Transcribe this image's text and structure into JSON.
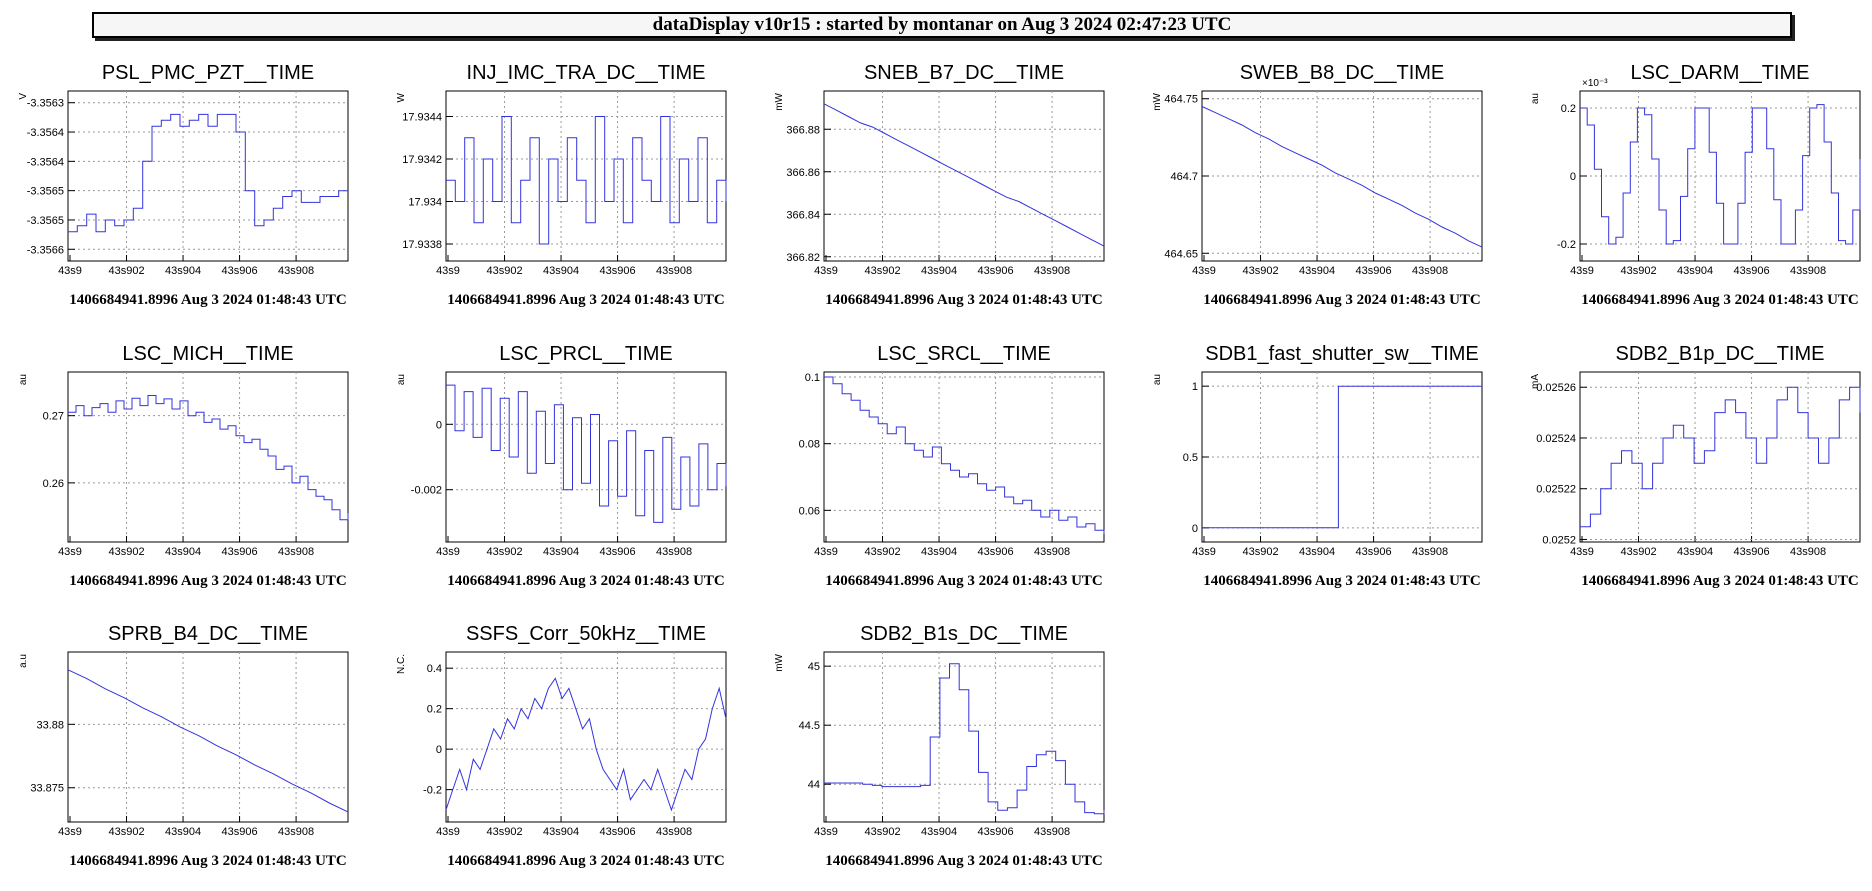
{
  "app_title": "dataDisplay v10r15 : started by montanar on Aug  3 2024 02:47:23 UTC",
  "colors": {
    "trace": "#3333dd",
    "grid": "#999999",
    "axis": "#000000",
    "background": "#ffffff"
  },
  "chart_data": [
    {
      "type": "line",
      "title": "PSL_PMC_PZT__TIME",
      "ylabel": "V",
      "footer": "1406684941.8996 Aug 3 2024 01:48:43 UTC",
      "x_ticks": [
        "43s9",
        "43s902",
        "43s904",
        "43s906",
        "43s908"
      ],
      "y_ticks": [
        "-3.3563",
        "-3.3564",
        "-3.3564",
        "-3.3565",
        "-3.3565",
        "-3.3566"
      ],
      "y_tick_values": [
        -3.3563,
        -3.35635,
        -3.3564,
        -3.35645,
        -3.3565,
        -3.35655
      ],
      "ylim": [
        -3.35657,
        -3.35628
      ],
      "grid": true,
      "step": true,
      "series": [
        {
          "values": [
            -3.35652,
            -3.35651,
            -3.35649,
            -3.35652,
            -3.3565,
            -3.35651,
            -3.3565,
            -3.35648,
            -3.3564,
            -3.35634,
            -3.35633,
            -3.35632,
            -3.35634,
            -3.35633,
            -3.35632,
            -3.35634,
            -3.35632,
            -3.35632,
            -3.35635,
            -3.35645,
            -3.35651,
            -3.3565,
            -3.35648,
            -3.35646,
            -3.35645,
            -3.35647,
            -3.35647,
            -3.35646,
            -3.35646,
            -3.35645,
            -3.35645
          ]
        }
      ]
    },
    {
      "type": "line",
      "title": "INJ_IMC_TRA_DC__TIME",
      "ylabel": "W",
      "footer": "1406684941.8996 Aug 3 2024 01:48:43 UTC",
      "x_ticks": [
        "43s9",
        "43s902",
        "43s904",
        "43s906",
        "43s908"
      ],
      "y_ticks": [
        "17.9344",
        "17.9342",
        "17.934",
        "17.9338"
      ],
      "y_tick_values": [
        17.9344,
        17.9342,
        17.934,
        17.9338
      ],
      "ylim": [
        17.93372,
        17.93452
      ],
      "grid": true,
      "step": true,
      "series": [
        {
          "values": [
            17.9341,
            17.934,
            17.9343,
            17.9339,
            17.9342,
            17.934,
            17.9344,
            17.9339,
            17.9341,
            17.9343,
            17.9338,
            17.9342,
            17.934,
            17.9343,
            17.9341,
            17.9339,
            17.9344,
            17.934,
            17.9342,
            17.9339,
            17.9343,
            17.9341,
            17.934,
            17.9344,
            17.9339,
            17.9342,
            17.934,
            17.9343,
            17.9339,
            17.9341,
            17.934
          ]
        }
      ]
    },
    {
      "type": "line",
      "title": "SNEB_B7_DC__TIME",
      "ylabel": "mW",
      "footer": "1406684941.8996 Aug 3 2024 01:48:43 UTC",
      "x_ticks": [
        "43s9",
        "43s902",
        "43s904",
        "43s906",
        "43s908"
      ],
      "y_ticks": [
        "366.88",
        "366.86",
        "366.84",
        "366.82"
      ],
      "y_tick_values": [
        366.88,
        366.86,
        366.84,
        366.82
      ],
      "ylim": [
        366.818,
        366.898
      ],
      "grid": true,
      "step": false,
      "series": [
        {
          "values": [
            366.892,
            366.889,
            366.886,
            366.883,
            366.881,
            366.878,
            366.875,
            366.872,
            366.869,
            366.866,
            366.863,
            366.86,
            366.857,
            366.854,
            366.851,
            366.848,
            366.846,
            366.843,
            366.84,
            366.837,
            366.834,
            366.831,
            366.828,
            366.825
          ]
        }
      ]
    },
    {
      "type": "line",
      "title": "SWEB_B8_DC__TIME",
      "ylabel": "mW",
      "footer": "1406684941.8996 Aug 3 2024 01:48:43 UTC",
      "x_ticks": [
        "43s9",
        "43s902",
        "43s904",
        "43s906",
        "43s908"
      ],
      "y_ticks": [
        "464.75",
        "464.7",
        "464.65"
      ],
      "y_tick_values": [
        464.75,
        464.7,
        464.65
      ],
      "ylim": [
        464.645,
        464.755
      ],
      "grid": true,
      "step": false,
      "series": [
        {
          "values": [
            464.745,
            464.741,
            464.737,
            464.733,
            464.728,
            464.724,
            464.719,
            464.715,
            464.711,
            464.707,
            464.702,
            464.698,
            464.694,
            464.689,
            464.685,
            464.681,
            464.676,
            464.672,
            464.667,
            464.663,
            464.658,
            464.654
          ]
        }
      ]
    },
    {
      "type": "line",
      "title": "LSC_DARM__TIME",
      "ylabel": "au",
      "y_exponent": "×10⁻³",
      "footer": "1406684941.8996 Aug 3 2024 01:48:43 UTC",
      "x_ticks": [
        "43s9",
        "43s902",
        "43s904",
        "43s906",
        "43s908"
      ],
      "y_ticks": [
        "0.2",
        "0",
        "-0.2"
      ],
      "y_tick_values": [
        0.2,
        0,
        -0.2
      ],
      "ylim": [
        -0.25,
        0.25
      ],
      "grid": true,
      "step": true,
      "series": [
        {
          "values": [
            0.2,
            0.15,
            0.02,
            -0.12,
            -0.2,
            -0.18,
            -0.05,
            0.1,
            0.2,
            0.18,
            0.05,
            -0.1,
            -0.2,
            -0.19,
            -0.06,
            0.08,
            0.2,
            0.2,
            0.07,
            -0.08,
            -0.2,
            -0.2,
            -0.08,
            0.07,
            0.2,
            0.2,
            0.08,
            -0.07,
            -0.2,
            -0.2,
            -0.1,
            0.06,
            0.2,
            0.21,
            0.1,
            -0.05,
            -0.19,
            -0.2,
            -0.1,
            0.05
          ]
        }
      ]
    },
    {
      "type": "line",
      "title": "LSC_MICH__TIME",
      "ylabel": "au",
      "footer": "1406684941.8996 Aug 3 2024 01:48:43 UTC",
      "x_ticks": [
        "43s9",
        "43s902",
        "43s904",
        "43s906",
        "43s908"
      ],
      "y_ticks": [
        "0.27",
        "0.26"
      ],
      "y_tick_values": [
        0.27,
        0.26
      ],
      "ylim": [
        0.2512,
        0.2765
      ],
      "grid": true,
      "step": true,
      "series": [
        {
          "values": [
            0.2705,
            0.2715,
            0.27,
            0.2712,
            0.2718,
            0.2705,
            0.2722,
            0.271,
            0.2726,
            0.2715,
            0.273,
            0.2718,
            0.2725,
            0.271,
            0.2722,
            0.27,
            0.2705,
            0.269,
            0.2695,
            0.268,
            0.2685,
            0.267,
            0.266,
            0.2665,
            0.265,
            0.264,
            0.262,
            0.2625,
            0.26,
            0.261,
            0.259,
            0.258,
            0.2575,
            0.256,
            0.2545,
            0.2555
          ]
        }
      ]
    },
    {
      "type": "line",
      "title": "LSC_PRCL__TIME",
      "ylabel": "au",
      "footer": "1406684941.8996 Aug 3 2024 01:48:43 UTC",
      "x_ticks": [
        "43s9",
        "43s902",
        "43s904",
        "43s906",
        "43s908"
      ],
      "y_ticks": [
        "0",
        "-0.002"
      ],
      "y_tick_values": [
        0,
        -0.002
      ],
      "ylim": [
        -0.0036,
        0.0016
      ],
      "grid": true,
      "step": true,
      "series": [
        {
          "values": [
            0.0012,
            -0.0002,
            0.001,
            -0.0004,
            0.0011,
            -0.0008,
            0.0008,
            -0.001,
            0.001,
            -0.0015,
            0.0004,
            -0.0012,
            0.0006,
            -0.002,
            0.0002,
            -0.0018,
            0.0003,
            -0.0025,
            -0.0005,
            -0.0022,
            -0.0002,
            -0.0028,
            -0.0008,
            -0.003,
            -0.0004,
            -0.0026,
            -0.001,
            -0.0025,
            -0.0006,
            -0.002,
            -0.0012,
            -0.0019
          ]
        }
      ]
    },
    {
      "type": "line",
      "title": "LSC_SRCL__TIME",
      "ylabel": "",
      "footer": "1406684941.8996 Aug 3 2024 01:48:43 UTC",
      "x_ticks": [
        "43s9",
        "43s902",
        "43s904",
        "43s906",
        "43s908"
      ],
      "y_ticks": [
        "0.1",
        "0.08",
        "0.06"
      ],
      "y_tick_values": [
        0.1,
        0.08,
        0.06
      ],
      "ylim": [
        0.0505,
        0.1015
      ],
      "grid": true,
      "step": true,
      "series": [
        {
          "values": [
            0.1,
            0.098,
            0.095,
            0.093,
            0.09,
            0.088,
            0.086,
            0.083,
            0.085,
            0.08,
            0.078,
            0.076,
            0.079,
            0.074,
            0.072,
            0.07,
            0.071,
            0.068,
            0.066,
            0.067,
            0.064,
            0.062,
            0.063,
            0.06,
            0.058,
            0.06,
            0.057,
            0.058,
            0.055,
            0.056,
            0.054,
            0.053
          ]
        }
      ]
    },
    {
      "type": "line",
      "title": "SDB1_fast_shutter_sw__TIME",
      "ylabel": "au",
      "footer": "1406684941.8996 Aug 3 2024 01:48:43 UTC",
      "x_ticks": [
        "43s9",
        "43s902",
        "43s904",
        "43s906",
        "43s908"
      ],
      "y_ticks": [
        "1",
        "0.5",
        "0"
      ],
      "y_tick_values": [
        1,
        0.5,
        0
      ],
      "ylim": [
        -0.1,
        1.1
      ],
      "grid": true,
      "step": true,
      "series": [
        {
          "values": [
            0,
            0,
            0,
            0,
            0,
            0,
            0,
            0,
            0,
            0,
            0,
            0,
            0,
            0,
            0,
            0,
            0,
            0,
            0,
            1,
            1,
            1,
            1,
            1,
            1,
            1,
            1,
            1,
            1,
            1,
            1,
            1,
            1,
            1,
            1,
            1,
            1,
            1,
            1,
            1
          ]
        }
      ]
    },
    {
      "type": "line",
      "title": "SDB2_B1p_DC__TIME",
      "ylabel": "mA",
      "footer": "1406684941.8996 Aug 3 2024 01:48:43 UTC",
      "x_ticks": [
        "43s9",
        "43s902",
        "43s904",
        "43s906",
        "43s908"
      ],
      "y_ticks": [
        "0.02526",
        "0.02524",
        "0.02522",
        "0.0252"
      ],
      "y_tick_values": [
        0.02526,
        0.02524,
        0.02522,
        0.0252
      ],
      "ylim": [
        0.025199,
        0.025266
      ],
      "grid": true,
      "step": true,
      "series": [
        {
          "values": [
            0.025205,
            0.02521,
            0.02522,
            0.02523,
            0.025235,
            0.02523,
            0.02522,
            0.02523,
            0.02524,
            0.025245,
            0.02524,
            0.02523,
            0.025235,
            0.02525,
            0.025255,
            0.02525,
            0.02524,
            0.02523,
            0.02524,
            0.025255,
            0.02526,
            0.02525,
            0.02524,
            0.02523,
            0.02524,
            0.025255,
            0.02526,
            0.02525
          ]
        }
      ]
    },
    {
      "type": "line",
      "title": "SPRB_B4_DC__TIME",
      "ylabel": "a.u",
      "footer": "1406684941.8996 Aug 3 2024 01:48:43 UTC",
      "x_ticks": [
        "43s9",
        "43s902",
        "43s904",
        "43s906",
        "43s908"
      ],
      "y_ticks": [
        "33.88",
        "33.875"
      ],
      "y_tick_values": [
        33.88,
        33.875
      ],
      "ylim": [
        33.8723,
        33.8857
      ],
      "grid": true,
      "step": false,
      "series": [
        {
          "values": [
            33.8843,
            33.8836,
            33.8828,
            33.8821,
            33.8813,
            33.8806,
            33.8798,
            33.8791,
            33.8783,
            33.8776,
            33.8768,
            33.8761,
            33.8753,
            33.8746,
            33.8738,
            33.8731
          ]
        }
      ]
    },
    {
      "type": "line",
      "title": "SSFS_Corr_50kHz__TIME",
      "ylabel": "N.C.",
      "footer": "1406684941.8996 Aug 3 2024 01:48:43 UTC",
      "x_ticks": [
        "43s9",
        "43s902",
        "43s904",
        "43s906",
        "43s908"
      ],
      "y_ticks": [
        "0.4",
        "0.2",
        "0",
        "-0.2"
      ],
      "y_tick_values": [
        0.4,
        0.2,
        0,
        -0.2
      ],
      "ylim": [
        -0.36,
        0.48
      ],
      "grid": true,
      "step": false,
      "series": [
        {
          "values": [
            -0.3,
            -0.2,
            -0.1,
            -0.2,
            -0.05,
            -0.1,
            0.0,
            0.1,
            0.05,
            0.15,
            0.1,
            0.2,
            0.15,
            0.25,
            0.2,
            0.3,
            0.35,
            0.25,
            0.3,
            0.2,
            0.1,
            0.15,
            0.0,
            -0.1,
            -0.15,
            -0.2,
            -0.1,
            -0.25,
            -0.2,
            -0.15,
            -0.2,
            -0.1,
            -0.2,
            -0.3,
            -0.2,
            -0.1,
            -0.15,
            0.0,
            0.05,
            0.2,
            0.3,
            0.15
          ]
        }
      ]
    },
    {
      "type": "line",
      "title": "SDB2_B1s_DC__TIME",
      "ylabel": "mW",
      "footer": "1406684941.8996 Aug 3 2024 01:48:43 UTC",
      "x_ticks": [
        "43s9",
        "43s902",
        "43s904",
        "43s906",
        "43s908"
      ],
      "y_ticks": [
        "45",
        "44.5",
        "44"
      ],
      "y_tick_values": [
        45,
        44.5,
        44
      ],
      "ylim": [
        43.68,
        45.12
      ],
      "grid": true,
      "step": true,
      "series": [
        {
          "values": [
            44.01,
            44.01,
            44.01,
            44.01,
            44.0,
            43.99,
            43.98,
            43.98,
            43.98,
            43.98,
            43.99,
            44.4,
            44.9,
            45.02,
            44.8,
            44.45,
            44.1,
            43.85,
            43.78,
            43.8,
            43.95,
            44.15,
            44.25,
            44.28,
            44.2,
            44.0,
            43.85,
            43.76,
            43.75,
            43.78
          ]
        }
      ]
    }
  ]
}
